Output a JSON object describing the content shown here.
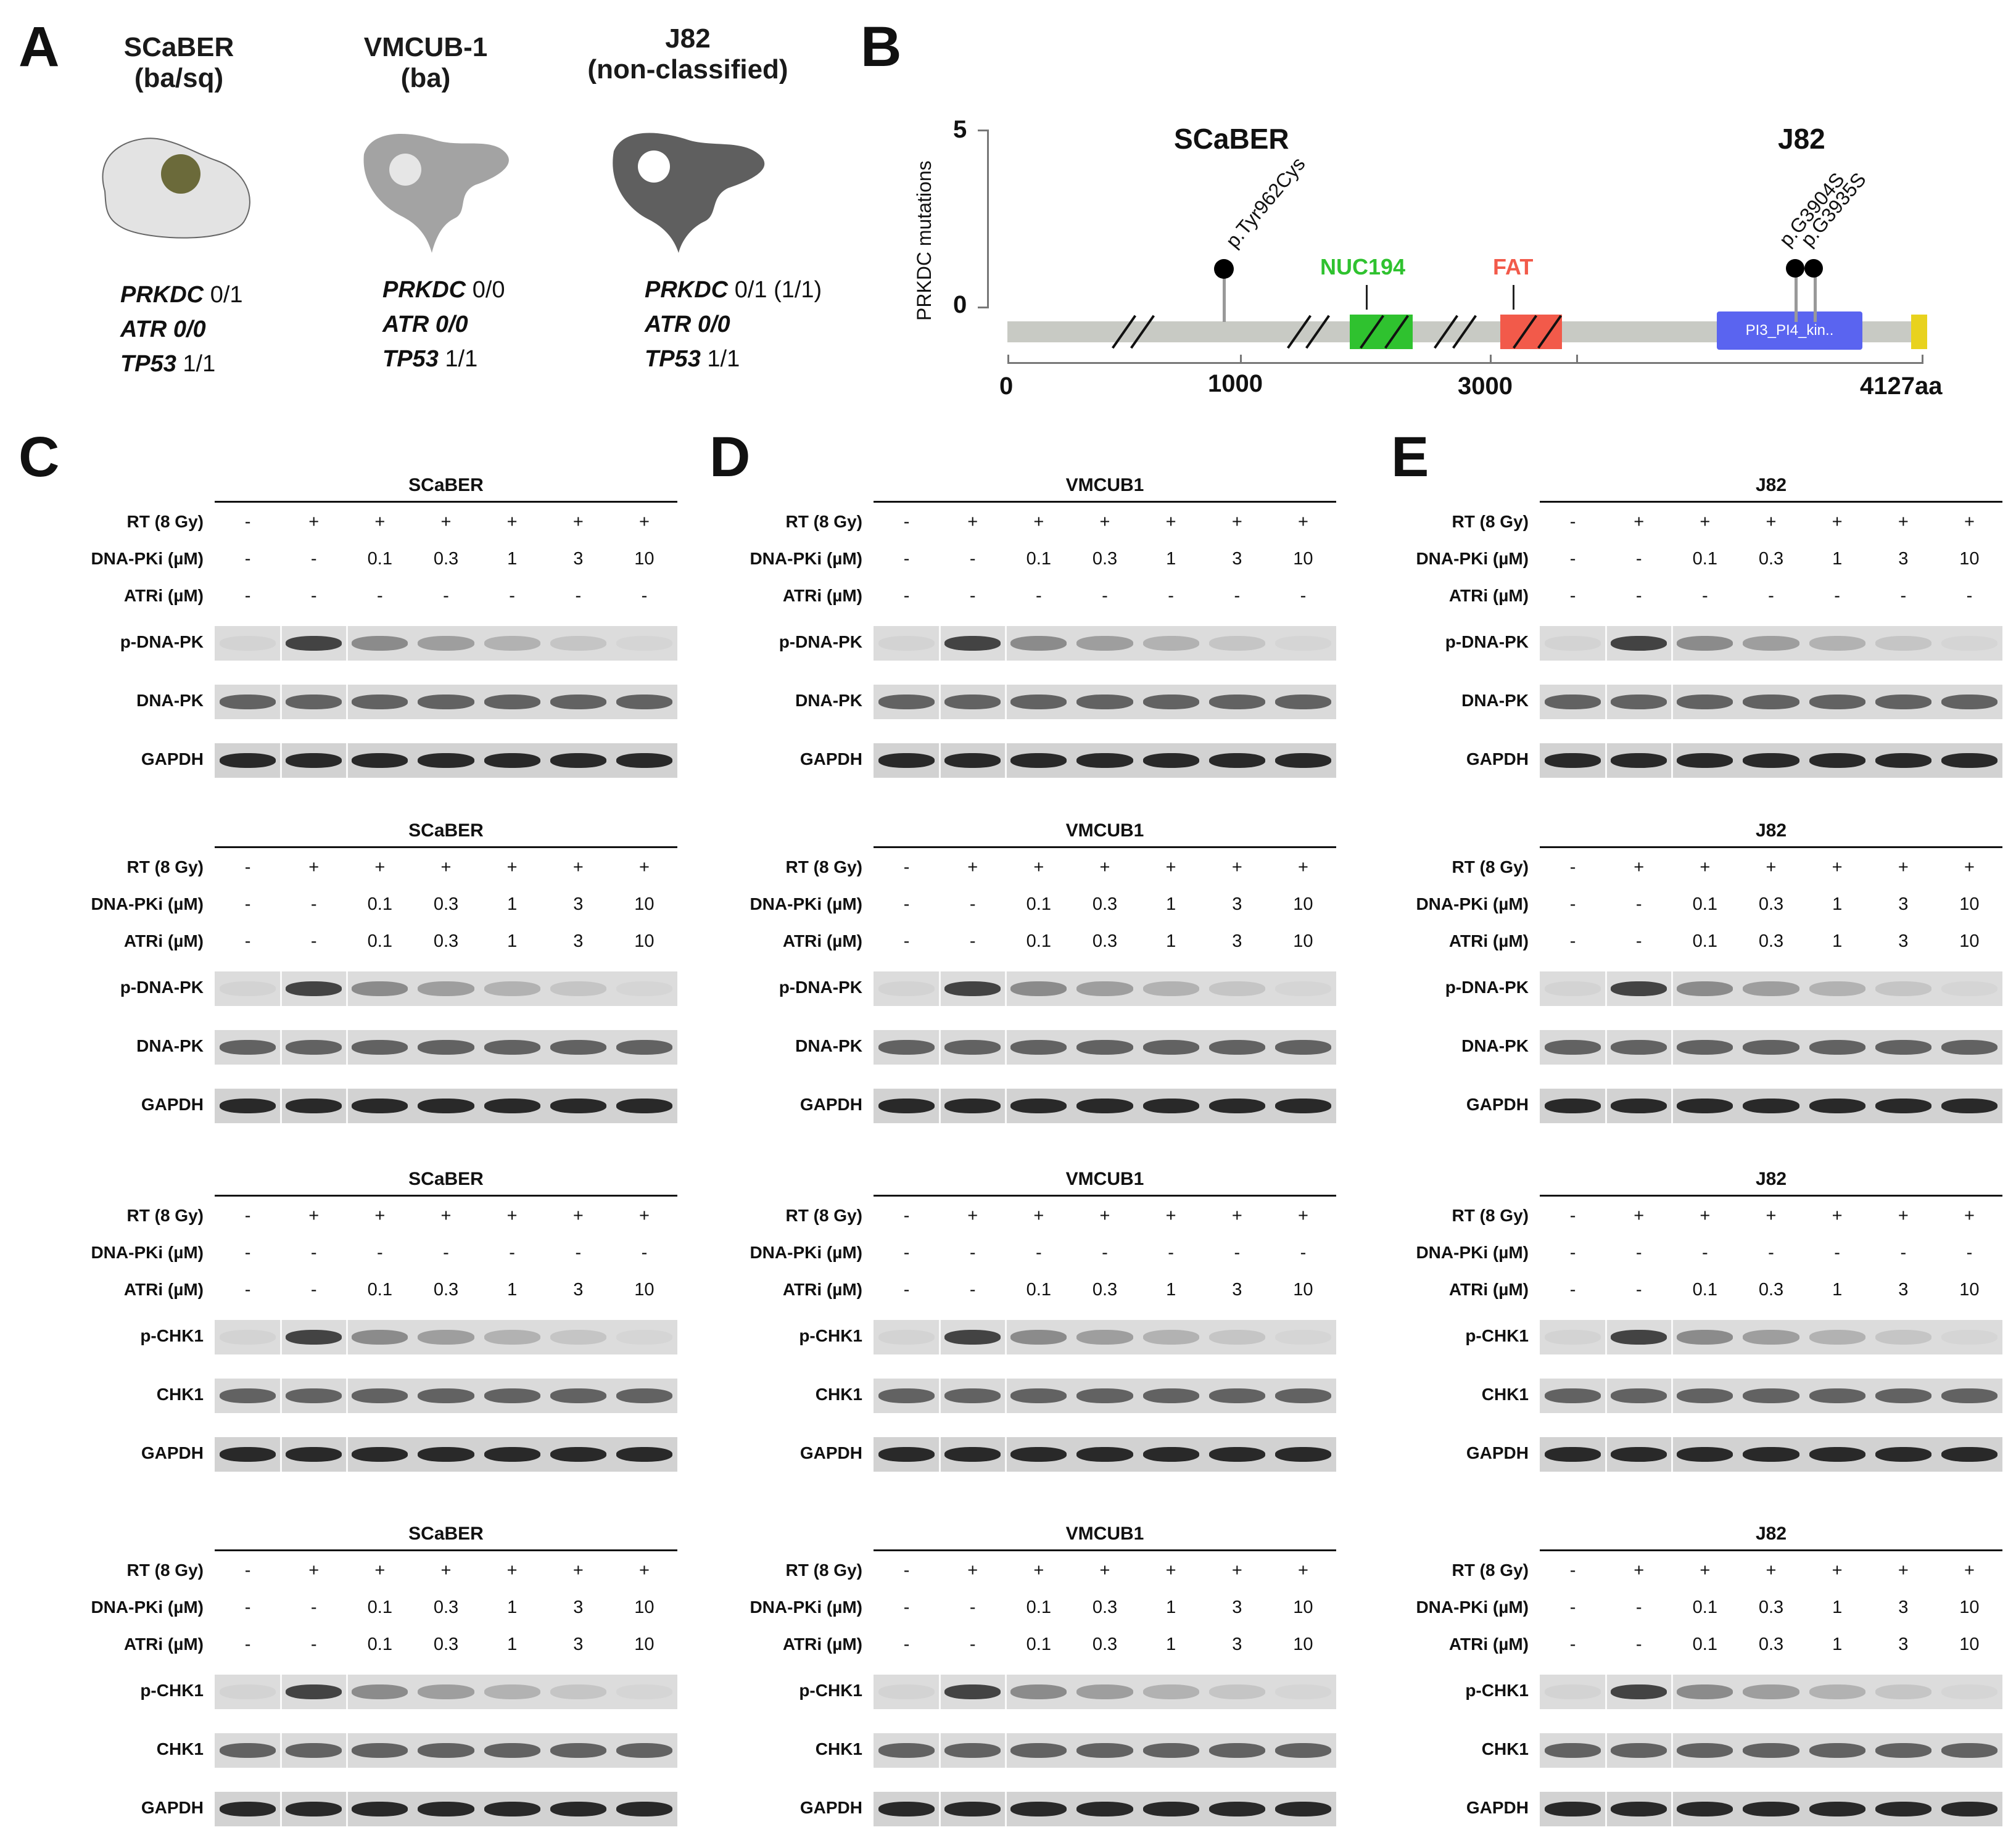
{
  "panelA": {
    "letter": "A",
    "cells": [
      {
        "name": "SCaBER",
        "sub": "(ba/sq)",
        "prkdc": "0/1",
        "atr": "0/0",
        "tp53": "1/1",
        "fill": "#e3e3e3",
        "nucleus": "#6b6a3a"
      },
      {
        "name": "VMCUB-1",
        "sub": "(ba)",
        "prkdc": "0/0",
        "atr": "0/0",
        "tp53": "1/1",
        "fill": "#a3a3a3",
        "nucleus": "#e6e6e6"
      },
      {
        "name": "J82",
        "sub": "(non-classified)",
        "prkdc": "0/1 (1/1)",
        "atr": "0/0",
        "tp53": "1/1",
        "fill": "#5f5f5f",
        "nucleus": "#ffffff"
      }
    ],
    "gene_labels": {
      "prkdc": "PRKDC",
      "atr": "ATR",
      "tp53": "TP53"
    }
  },
  "panelB": {
    "letter": "B",
    "ylabel": "PRKDC mutations",
    "yticks": [
      "5",
      "0"
    ],
    "xticks": [
      "0",
      "1000",
      "3000",
      "4127aa"
    ],
    "cell_scaber": "SCaBER",
    "cell_j82": "J82",
    "mutations": [
      {
        "label": "p.Tyr962Cys"
      },
      {
        "label": "p.G3904S"
      },
      {
        "label": "p.G3935S"
      }
    ],
    "domains": {
      "nuc194": {
        "label": "NUC194",
        "color": "#2fc22f"
      },
      "fat": {
        "label": "FAT",
        "color": "#f25a4a"
      },
      "pi3": {
        "label": "PI3_PI4_kin..",
        "color": "#5a64f0"
      },
      "end_color": "#e8d21e",
      "bar_color": "#c8cac4"
    }
  },
  "blot_panels": [
    {
      "letter": "C",
      "blots": [
        {
          "title": "SCaBER",
          "rows": [
            {
              "label": "RT (8 Gy)",
              "values": [
                "-",
                "+",
                "+",
                "+",
                "+",
                "+",
                "+"
              ]
            },
            {
              "label": "DNA-PKi (µM)",
              "values": [
                "-",
                "-",
                "0.1",
                "0.3",
                "1",
                "3",
                "10"
              ]
            },
            {
              "label": "ATRi (µM)",
              "values": [
                "-",
                "-",
                "-",
                "-",
                "-",
                "-",
                "-"
              ]
            }
          ],
          "bands": [
            "p-DNA-PK",
            "DNA-PK",
            "GAPDH"
          ]
        },
        {
          "title": "SCaBER",
          "rows": [
            {
              "label": "RT (8 Gy)",
              "values": [
                "-",
                "+",
                "+",
                "+",
                "+",
                "+",
                "+"
              ]
            },
            {
              "label": "DNA-PKi (µM)",
              "values": [
                "-",
                "-",
                "0.1",
                "0.3",
                "1",
                "3",
                "10"
              ]
            },
            {
              "label": "ATRi (µM)",
              "values": [
                "-",
                "-",
                "0.1",
                "0.3",
                "1",
                "3",
                "10"
              ]
            }
          ],
          "bands": [
            "p-DNA-PK",
            "DNA-PK",
            "GAPDH"
          ]
        },
        {
          "title": "SCaBER",
          "rows": [
            {
              "label": "RT (8 Gy)",
              "values": [
                "-",
                "+",
                "+",
                "+",
                "+",
                "+",
                "+"
              ]
            },
            {
              "label": "DNA-PKi (µM)",
              "values": [
                "-",
                "-",
                "-",
                "-",
                "-",
                "-",
                "-"
              ]
            },
            {
              "label": "ATRi (µM)",
              "values": [
                "-",
                "-",
                "0.1",
                "0.3",
                "1",
                "3",
                "10"
              ]
            }
          ],
          "bands": [
            "p-CHK1",
            "CHK1",
            "GAPDH"
          ]
        },
        {
          "title": "SCaBER",
          "rows": [
            {
              "label": "RT (8 Gy)",
              "values": [
                "-",
                "+",
                "+",
                "+",
                "+",
                "+",
                "+"
              ]
            },
            {
              "label": "DNA-PKi (µM)",
              "values": [
                "-",
                "-",
                "0.1",
                "0.3",
                "1",
                "3",
                "10"
              ]
            },
            {
              "label": "ATRi (µM)",
              "values": [
                "-",
                "-",
                "0.1",
                "0.3",
                "1",
                "3",
                "10"
              ]
            }
          ],
          "bands": [
            "p-CHK1",
            "CHK1",
            "GAPDH"
          ]
        }
      ]
    },
    {
      "letter": "D",
      "blots": [
        {
          "title": "VMCUB1",
          "rows": [
            {
              "label": "RT (8 Gy)",
              "values": [
                "-",
                "+",
                "+",
                "+",
                "+",
                "+",
                "+"
              ]
            },
            {
              "label": "DNA-PKi (µM)",
              "values": [
                "-",
                "-",
                "0.1",
                "0.3",
                "1",
                "3",
                "10"
              ]
            },
            {
              "label": "ATRi (µM)",
              "values": [
                "-",
                "-",
                "-",
                "-",
                "-",
                "-",
                "-"
              ]
            }
          ],
          "bands": [
            "p-DNA-PK",
            "DNA-PK",
            "GAPDH"
          ]
        },
        {
          "title": "VMCUB1",
          "rows": [
            {
              "label": "RT (8 Gy)",
              "values": [
                "-",
                "+",
                "+",
                "+",
                "+",
                "+",
                "+"
              ]
            },
            {
              "label": "DNA-PKi (µM)",
              "values": [
                "-",
                "-",
                "0.1",
                "0.3",
                "1",
                "3",
                "10"
              ]
            },
            {
              "label": "ATRi (µM)",
              "values": [
                "-",
                "-",
                "0.1",
                "0.3",
                "1",
                "3",
                "10"
              ]
            }
          ],
          "bands": [
            "p-DNA-PK",
            "DNA-PK",
            "GAPDH"
          ]
        },
        {
          "title": "VMCUB1",
          "rows": [
            {
              "label": "RT (8 Gy)",
              "values": [
                "-",
                "+",
                "+",
                "+",
                "+",
                "+",
                "+"
              ]
            },
            {
              "label": "DNA-PKi (µM)",
              "values": [
                "-",
                "-",
                "-",
                "-",
                "-",
                "-",
                "-"
              ]
            },
            {
              "label": "ATRi (µM)",
              "values": [
                "-",
                "-",
                "0.1",
                "0.3",
                "1",
                "3",
                "10"
              ]
            }
          ],
          "bands": [
            "p-CHK1",
            "CHK1",
            "GAPDH"
          ]
        },
        {
          "title": "VMCUB1",
          "rows": [
            {
              "label": "RT (8 Gy)",
              "values": [
                "-",
                "+",
                "+",
                "+",
                "+",
                "+",
                "+"
              ]
            },
            {
              "label": "DNA-PKi (µM)",
              "values": [
                "-",
                "-",
                "0.1",
                "0.3",
                "1",
                "3",
                "10"
              ]
            },
            {
              "label": "ATRi (µM)",
              "values": [
                "-",
                "-",
                "0.1",
                "0.3",
                "1",
                "3",
                "10"
              ]
            }
          ],
          "bands": [
            "p-CHK1",
            "CHK1",
            "GAPDH"
          ]
        }
      ]
    },
    {
      "letter": "E",
      "blots": [
        {
          "title": "J82",
          "rows": [
            {
              "label": "RT (8 Gy)",
              "values": [
                "-",
                "+",
                "+",
                "+",
                "+",
                "+",
                "+"
              ]
            },
            {
              "label": "DNA-PKi (µM)",
              "values": [
                "-",
                "-",
                "0.1",
                "0.3",
                "1",
                "3",
                "10"
              ]
            },
            {
              "label": "ATRi (µM)",
              "values": [
                "-",
                "-",
                "-",
                "-",
                "-",
                "-",
                "-"
              ]
            }
          ],
          "bands": [
            "p-DNA-PK",
            "DNA-PK",
            "GAPDH"
          ]
        },
        {
          "title": "J82",
          "rows": [
            {
              "label": "RT (8 Gy)",
              "values": [
                "-",
                "+",
                "+",
                "+",
                "+",
                "+",
                "+"
              ]
            },
            {
              "label": "DNA-PKi (µM)",
              "values": [
                "-",
                "-",
                "0.1",
                "0.3",
                "1",
                "3",
                "10"
              ]
            },
            {
              "label": "ATRi (µM)",
              "values": [
                "-",
                "-",
                "0.1",
                "0.3",
                "1",
                "3",
                "10"
              ]
            }
          ],
          "bands": [
            "p-DNA-PK",
            "DNA-PK",
            "GAPDH"
          ]
        },
        {
          "title": "J82",
          "rows": [
            {
              "label": "RT (8 Gy)",
              "values": [
                "-",
                "+",
                "+",
                "+",
                "+",
                "+",
                "+"
              ]
            },
            {
              "label": "DNA-PKi (µM)",
              "values": [
                "-",
                "-",
                "-",
                "-",
                "-",
                "-",
                "-"
              ]
            },
            {
              "label": "ATRi (µM)",
              "values": [
                "-",
                "-",
                "0.1",
                "0.3",
                "1",
                "3",
                "10"
              ]
            }
          ],
          "bands": [
            "p-CHK1",
            "CHK1",
            "GAPDH"
          ]
        },
        {
          "title": "J82",
          "rows": [
            {
              "label": "RT (8 Gy)",
              "values": [
                "-",
                "+",
                "+",
                "+",
                "+",
                "+",
                "+"
              ]
            },
            {
              "label": "DNA-PKi (µM)",
              "values": [
                "-",
                "-",
                "0.1",
                "0.3",
                "1",
                "3",
                "10"
              ]
            },
            {
              "label": "ATRi (µM)",
              "values": [
                "-",
                "-",
                "0.1",
                "0.3",
                "1",
                "3",
                "10"
              ]
            }
          ],
          "bands": [
            "p-CHK1",
            "CHK1",
            "GAPDH"
          ]
        }
      ]
    }
  ]
}
